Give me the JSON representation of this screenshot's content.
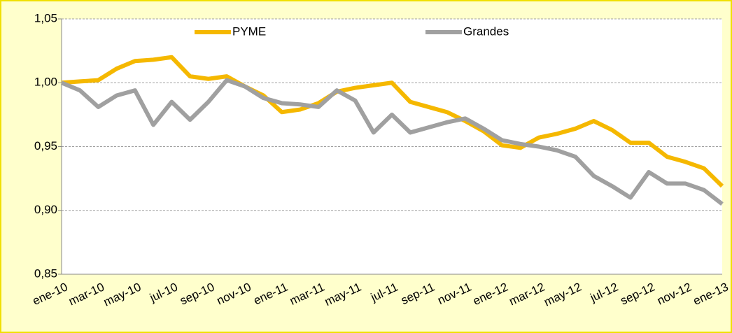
{
  "chart_data": {
    "type": "line",
    "categories": [
      "ene-10",
      null,
      "mar-10",
      null,
      "may-10",
      null,
      "jul-10",
      null,
      "sep-10",
      null,
      "nov-10",
      null,
      "ene-11",
      null,
      "mar-11",
      null,
      "may-11",
      null,
      "jul-11",
      null,
      "sep-11",
      null,
      "nov-11",
      null,
      "ene-12",
      null,
      "mar-12",
      null,
      "may-12",
      null,
      "jul-12",
      null,
      "sep-12",
      null,
      "nov-12",
      null,
      "ene-13"
    ],
    "series": [
      {
        "name": "PYME",
        "color": "#f5b800",
        "values": [
          1.0,
          1.001,
          1.002,
          1.011,
          1.017,
          1.018,
          1.02,
          1.005,
          1.003,
          1.005,
          0.997,
          0.99,
          0.977,
          0.979,
          0.984,
          0.993,
          0.996,
          0.998,
          1.0,
          0.985,
          0.981,
          0.977,
          0.97,
          0.962,
          0.951,
          0.949,
          0.957,
          0.96,
          0.964,
          0.97,
          0.963,
          0.953,
          0.953,
          0.942,
          0.938,
          0.933,
          0.919
        ]
      },
      {
        "name": "Grandes",
        "color": "#a0a0a0",
        "values": [
          1.0,
          0.994,
          0.981,
          0.99,
          0.994,
          0.967,
          0.985,
          0.971,
          0.985,
          1.002,
          0.997,
          0.988,
          0.984,
          0.983,
          0.981,
          0.994,
          0.986,
          0.961,
          0.975,
          0.961,
          0.965,
          0.969,
          0.972,
          0.964,
          0.955,
          0.952,
          0.95,
          0.947,
          0.942,
          0.927,
          0.919,
          0.91,
          0.93,
          0.921,
          0.921,
          0.916,
          0.905
        ]
      }
    ],
    "ylim": [
      0.85,
      1.05
    ],
    "yticks": [
      {
        "value": 0.85,
        "label": "0,85"
      },
      {
        "value": 0.9,
        "label": "0,90"
      },
      {
        "value": 0.95,
        "label": "0,95"
      },
      {
        "value": 1.0,
        "label": "1,00"
      },
      {
        "value": 1.05,
        "label": "1,05"
      }
    ],
    "grid": true,
    "legend": "top"
  }
}
